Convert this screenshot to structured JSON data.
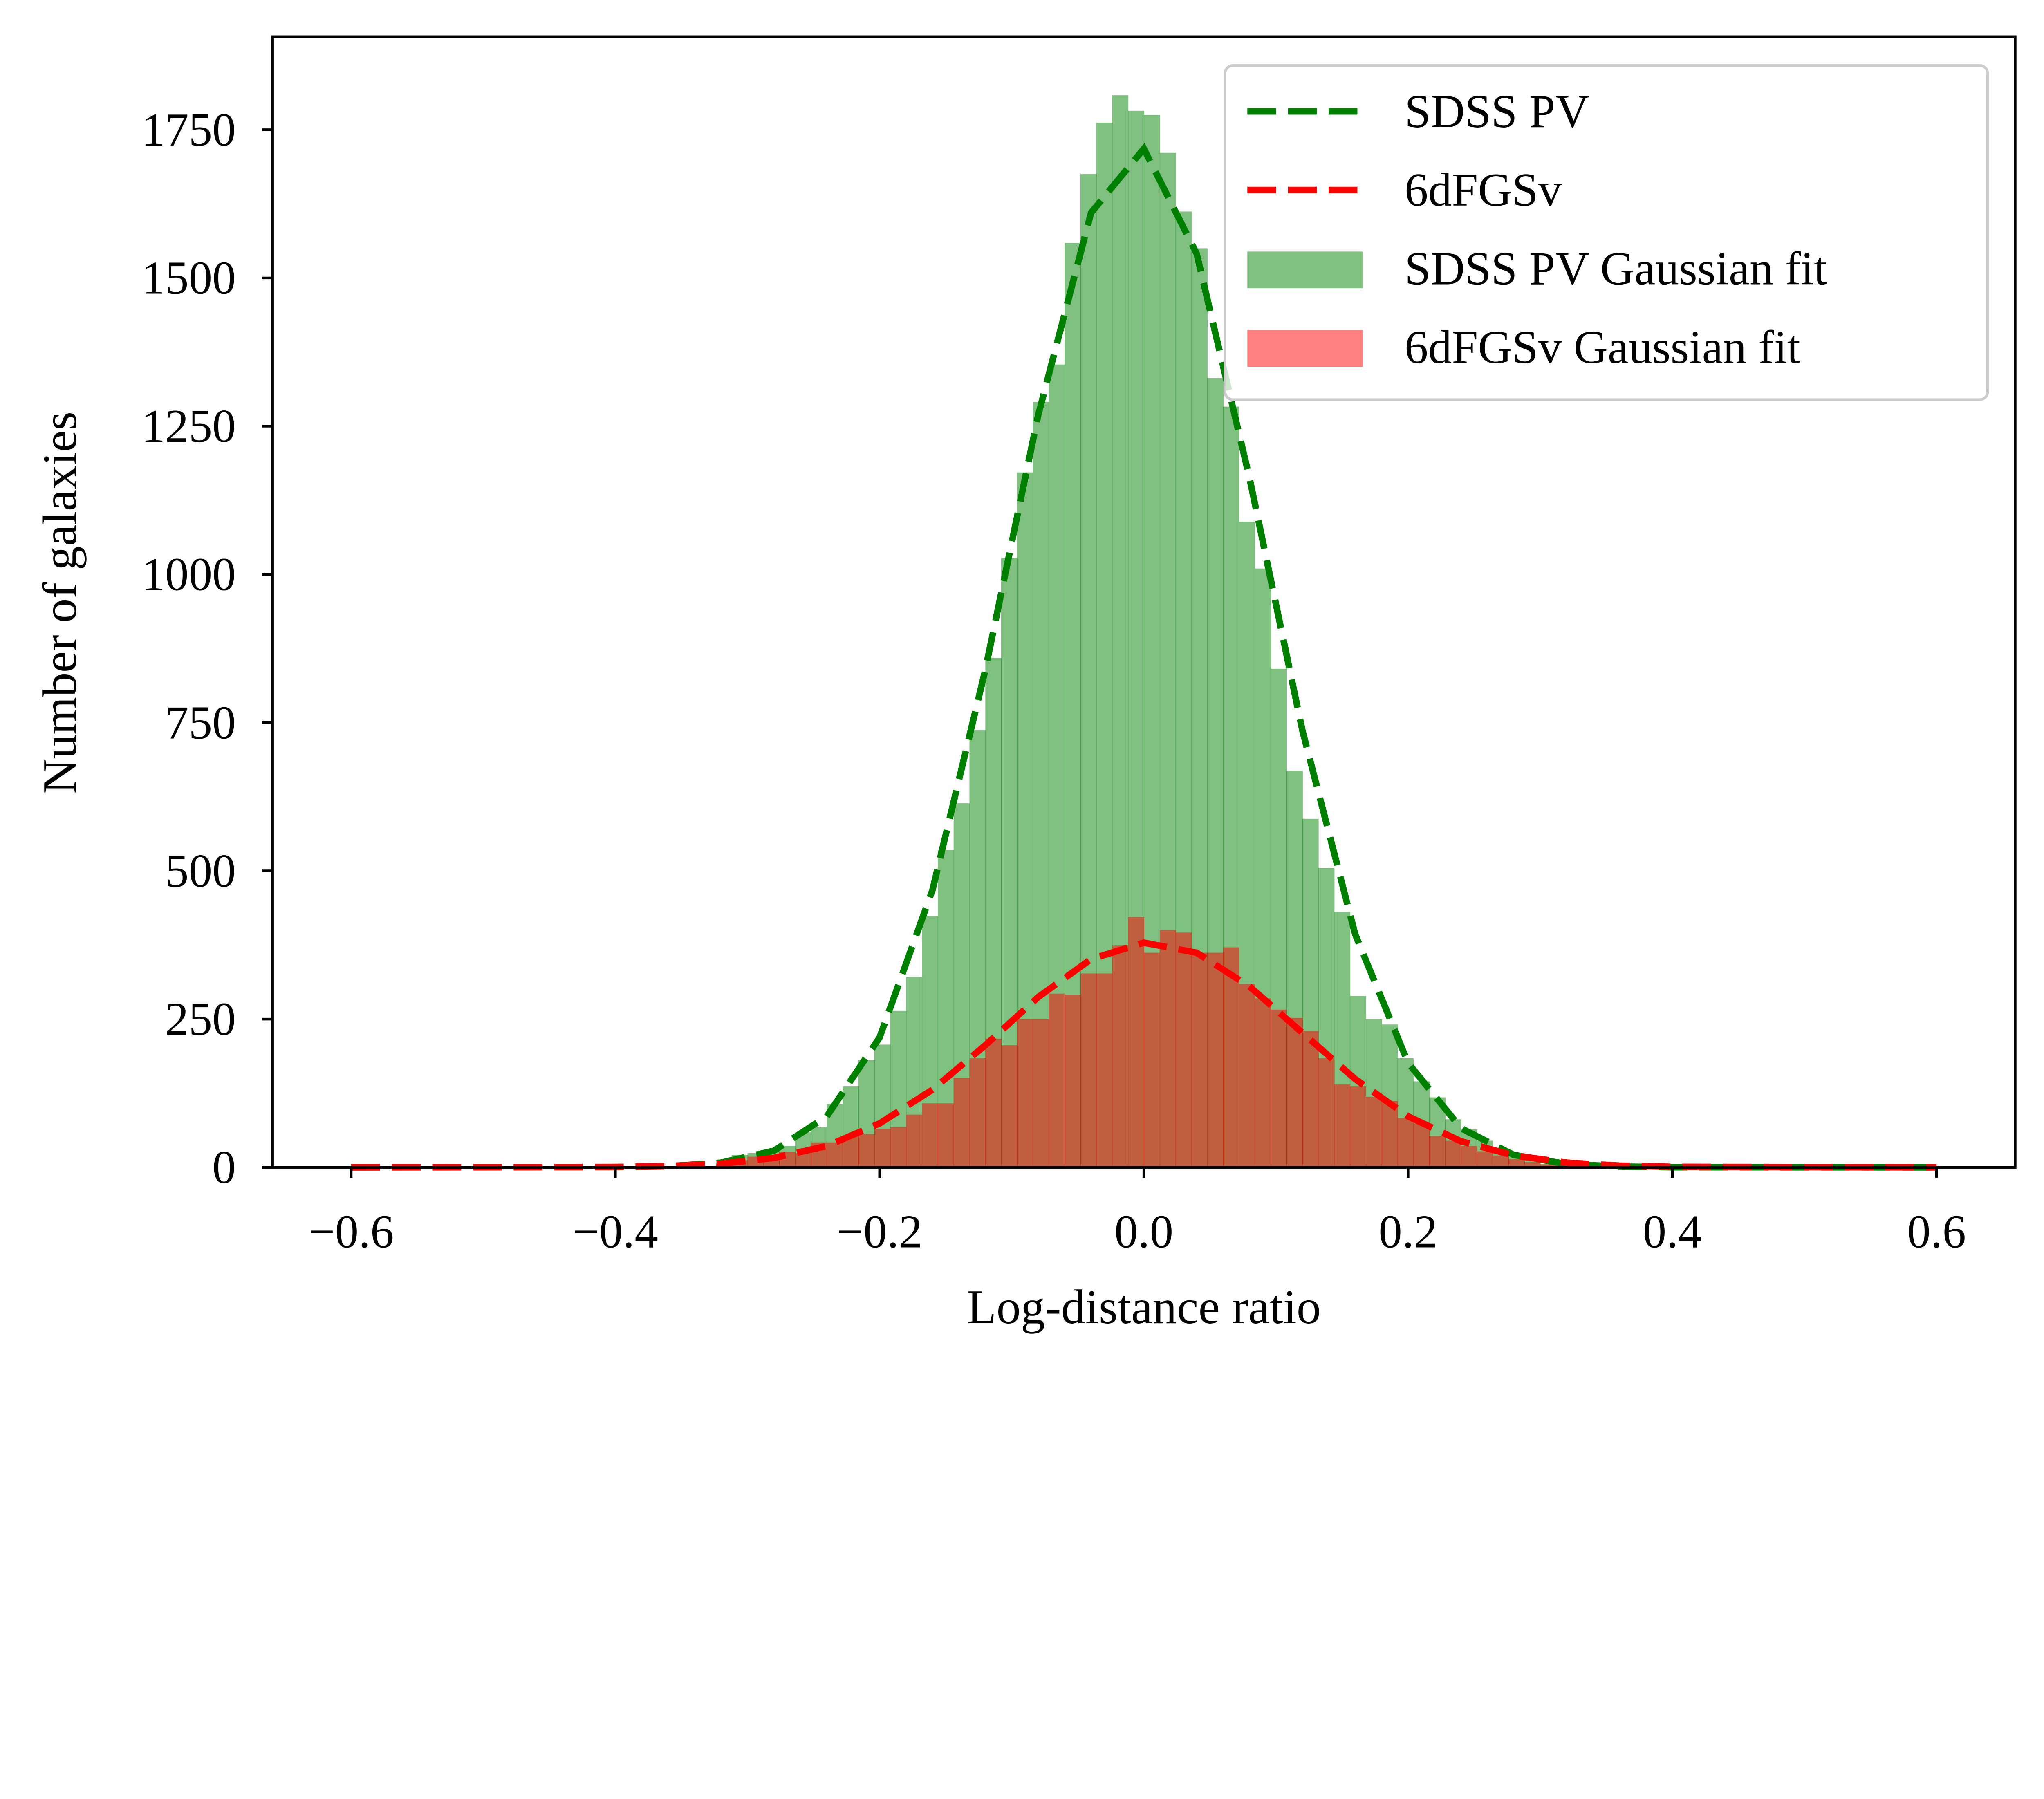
{
  "chart_data": {
    "type": "bar",
    "subtype": "histogram-with-fit-lines",
    "title": "",
    "xlabel": "Log-distance ratio",
    "ylabel": "Number of galaxies",
    "xlim": [
      -0.66,
      0.66
    ],
    "ylim": [
      0,
      1900
    ],
    "x_ticks": [
      -0.6,
      -0.4,
      -0.2,
      0.0,
      0.2,
      0.4,
      0.6
    ],
    "x_tick_labels": [
      "−0.6",
      "−0.4",
      "−0.2",
      "0.0",
      "0.2",
      "0.4",
      "0.6"
    ],
    "y_ticks": [
      0,
      250,
      500,
      750,
      1000,
      1250,
      1500,
      1750
    ],
    "y_tick_labels": [
      "0",
      "250",
      "500",
      "750",
      "1000",
      "1250",
      "1500",
      "1750"
    ],
    "grid": false,
    "legend_position": "top-right",
    "histogram_bin_width": 0.012,
    "histograms": [
      {
        "name": "SDSS PV Gaussian fit",
        "color": "#008000",
        "opacity": 0.5,
        "bin_left_edges": [
          -0.324,
          -0.312,
          -0.3,
          -0.288,
          -0.276,
          -0.264,
          -0.252,
          -0.24,
          -0.228,
          -0.216,
          -0.204,
          -0.192,
          -0.18,
          -0.168,
          -0.156,
          -0.144,
          -0.132,
          -0.12,
          -0.108,
          -0.096,
          -0.084,
          -0.072,
          -0.06,
          -0.048,
          -0.036,
          -0.024,
          -0.012,
          0.0,
          0.012,
          0.024,
          0.036,
          0.048,
          0.06,
          0.072,
          0.084,
          0.096,
          0.108,
          0.12,
          0.132,
          0.144,
          0.156,
          0.168,
          0.18,
          0.192,
          0.204,
          0.216,
          0.228,
          0.24,
          0.252,
          0.264,
          0.276,
          0.288,
          0.3,
          0.312
        ],
        "counts": [
          8,
          21,
          24,
          27,
          36,
          59,
          68,
          107,
          137,
          181,
          207,
          264,
          321,
          424,
          535,
          614,
          737,
          859,
          1028,
          1172,
          1291,
          1354,
          1559,
          1675,
          1762,
          1808,
          1782,
          1775,
          1711,
          1612,
          1550,
          1331,
          1283,
          1089,
          1010,
          841,
          669,
          588,
          505,
          431,
          289,
          250,
          241,
          184,
          145,
          118,
          81,
          64,
          45,
          30,
          20,
          12,
          6,
          3
        ]
      },
      {
        "name": "6dFGSv Gaussian fit",
        "color": "#ff0000",
        "opacity": 0.5,
        "bin_left_edges": [
          -0.324,
          -0.312,
          -0.3,
          -0.288,
          -0.276,
          -0.264,
          -0.252,
          -0.24,
          -0.228,
          -0.216,
          -0.204,
          -0.192,
          -0.18,
          -0.168,
          -0.156,
          -0.144,
          -0.132,
          -0.12,
          -0.108,
          -0.096,
          -0.084,
          -0.072,
          -0.06,
          -0.048,
          -0.036,
          -0.024,
          -0.012,
          0.0,
          0.012,
          0.024,
          0.036,
          0.048,
          0.06,
          0.072,
          0.084,
          0.096,
          0.108,
          0.12,
          0.132,
          0.144,
          0.156,
          0.168,
          0.18,
          0.192,
          0.204,
          0.216,
          0.228,
          0.24,
          0.252,
          0.264,
          0.276,
          0.288,
          0.3,
          0.312
        ],
        "counts": [
          6,
          12,
          18,
          18,
          26,
          24,
          42,
          42,
          53,
          56,
          65,
          68,
          89,
          108,
          108,
          151,
          184,
          217,
          206,
          250,
          250,
          293,
          291,
          327,
          327,
          374,
          422,
          362,
          400,
          396,
          362,
          362,
          371,
          309,
          285,
          266,
          252,
          230,
          184,
          140,
          137,
          119,
          112,
          83,
          74,
          53,
          45,
          36,
          27,
          20,
          14,
          9,
          5,
          3
        ]
      }
    ],
    "series": [
      {
        "name": "SDSS PV",
        "type": "line",
        "style": "dashed",
        "color": "#008000",
        "x": [
          -0.6,
          -0.4,
          -0.36,
          -0.32,
          -0.28,
          -0.24,
          -0.2,
          -0.16,
          -0.12,
          -0.08,
          -0.04,
          0.0,
          0.04,
          0.08,
          0.12,
          0.16,
          0.2,
          0.24,
          0.28,
          0.32,
          0.36,
          0.4,
          0.6
        ],
        "y": [
          0,
          0.4,
          1.8,
          7.9,
          28,
          86,
          219,
          468,
          839,
          1268,
          1610,
          1718,
          1541,
          1162,
          737,
          393,
          176,
          66,
          21,
          5.6,
          1.3,
          0.3,
          0
        ]
      },
      {
        "name": "6dFGSv",
        "type": "line",
        "style": "dashed",
        "color": "#ff0000",
        "x": [
          -0.6,
          -0.4,
          -0.36,
          -0.32,
          -0.28,
          -0.24,
          -0.2,
          -0.16,
          -0.12,
          -0.08,
          -0.04,
          0.0,
          0.04,
          0.08,
          0.12,
          0.16,
          0.2,
          0.24,
          0.28,
          0.32,
          0.36,
          0.4,
          0.6
        ],
        "y": [
          0,
          0.6,
          2.1,
          6.1,
          16,
          36,
          74,
          131,
          206,
          287,
          351,
          379,
          362,
          305,
          227,
          149,
          86,
          44,
          20,
          7.9,
          2.8,
          0.9,
          0
        ]
      }
    ],
    "legend": [
      "SDSS PV",
      "6dFGSv",
      "SDSS PV Gaussian fit",
      "6dFGSv Gaussian fit"
    ]
  }
}
